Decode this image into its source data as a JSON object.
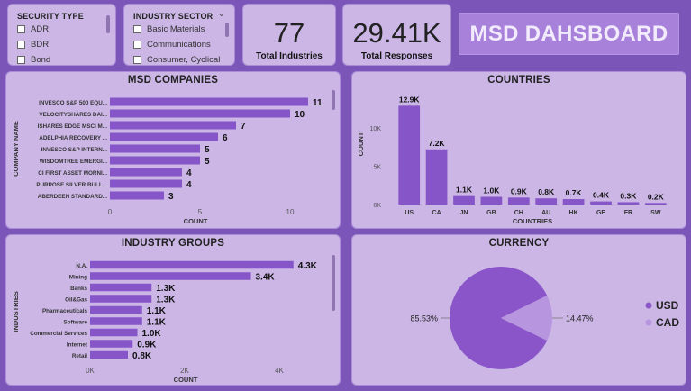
{
  "header": {
    "title": "MSD DAHSBOARD"
  },
  "security_slicer": {
    "title": "SECURITY TYPE",
    "items": [
      "ADR",
      "BDR",
      "Bond"
    ]
  },
  "industry_slicer": {
    "title": "INDUSTRY SECTOR",
    "items": [
      "Basic Materials",
      "Communications",
      "Consumer, Cyclical"
    ]
  },
  "kpis": {
    "industries": {
      "value": "77",
      "label": "Total Industries"
    },
    "responses": {
      "value": "29.41K",
      "label": "Total Responses"
    }
  },
  "colors": {
    "background": "#7b55b8",
    "card": "#cbb6e6",
    "bar": "#8655c8",
    "usd": "#8a55c9",
    "cad": "#b795df"
  },
  "chart_data": [
    {
      "id": "companies",
      "type": "bar",
      "orientation": "horizontal",
      "title": "MSD COMPANIES",
      "ylabel": "COMPANY NAME",
      "xlabel": "COUNT",
      "xlim": [
        0,
        11.5
      ],
      "xticks": [
        "0",
        "5",
        "10"
      ],
      "categories": [
        "INVESCO S&P 500 EQU...",
        "VELOCITYSHARES DAI...",
        "ISHARES EDGE MSCI M...",
        "ADELPHIA RECOVERY ...",
        "INVESCO S&P INTERN...",
        "WISDOMTREE EMERGI...",
        "CI FIRST ASSET MORNI...",
        "PURPOSE SILVER BULL...",
        "ABERDEEN STANDARD..."
      ],
      "values": [
        11,
        10,
        7,
        6,
        5,
        5,
        4,
        4,
        3
      ],
      "labels": [
        "11",
        "10",
        "7",
        "6",
        "5",
        "5",
        "4",
        "4",
        "3"
      ]
    },
    {
      "id": "countries",
      "type": "bar",
      "orientation": "vertical",
      "title": "COUNTRIES",
      "ylabel": "COUNT",
      "xlabel": "COUNTRIES",
      "ylim": [
        0,
        14000
      ],
      "yticks": [
        "0K",
        "5K",
        "10K"
      ],
      "categories": [
        "US",
        "CA",
        "JN",
        "GB",
        "CH",
        "AU",
        "HK",
        "GE",
        "FR",
        "SW"
      ],
      "values": [
        12900,
        7200,
        1100,
        1000,
        900,
        800,
        700,
        400,
        300,
        200
      ],
      "labels": [
        "12.9K",
        "7.2K",
        "1.1K",
        "1.0K",
        "0.9K",
        "0.8K",
        "0.7K",
        "0.4K",
        "0.3K",
        "0.2K"
      ]
    },
    {
      "id": "industries",
      "type": "bar",
      "orientation": "horizontal",
      "title": "INDUSTRY GROUPS",
      "ylabel": "INDUSTRIES",
      "xlabel": "COUNT",
      "xlim": [
        0,
        4800
      ],
      "xticks": [
        "0K",
        "2K",
        "4K"
      ],
      "categories": [
        "N.A.",
        "Mining",
        "Banks",
        "Oil&Gas",
        "Pharmaceuticals",
        "Software",
        "Commercial Services",
        "Internet",
        "Retail"
      ],
      "values": [
        4300,
        3400,
        1300,
        1300,
        1100,
        1100,
        1000,
        900,
        800
      ],
      "labels": [
        "4.3K",
        "3.4K",
        "1.3K",
        "1.3K",
        "1.1K",
        "1.1K",
        "1.0K",
        "0.9K",
        "0.8K"
      ]
    },
    {
      "id": "currency",
      "type": "pie",
      "title": "CURRENCY",
      "categories": [
        "USD",
        "CAD"
      ],
      "values": [
        85.53,
        14.47
      ],
      "labels": [
        "85.53%",
        "14.47%"
      ],
      "legend": "right"
    }
  ]
}
